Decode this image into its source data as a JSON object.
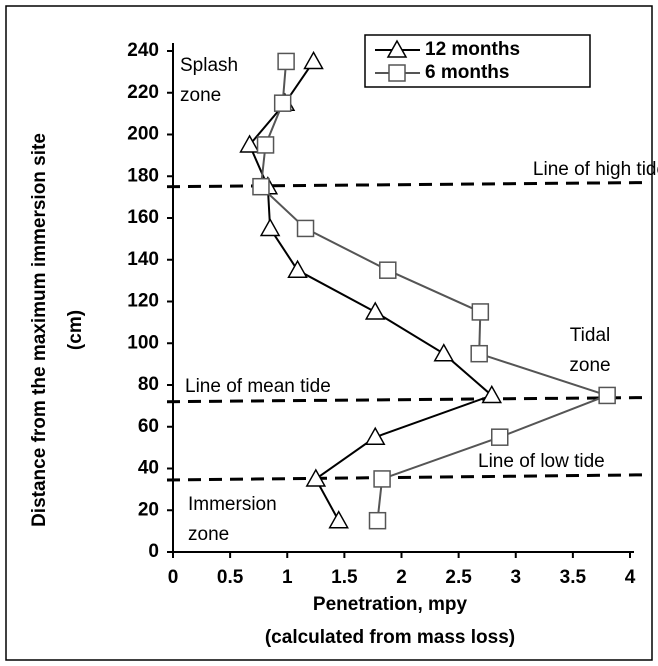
{
  "chart_data": {
    "type": "line",
    "xlabel": [
      "Penetration, mpy",
      "(calculated from mass loss)"
    ],
    "ylabel": [
      "Distance from the maximum immersion site",
      "(cm)"
    ],
    "xlim": [
      0,
      4
    ],
    "xticks": [
      0,
      0.5,
      1,
      1.5,
      2,
      2.5,
      3,
      3.5,
      4
    ],
    "ylim": [
      0,
      240
    ],
    "yticks": [
      0,
      20,
      40,
      60,
      80,
      100,
      120,
      140,
      160,
      180,
      200,
      220,
      240
    ],
    "legend": "upper right",
    "series": [
      {
        "name": "12 months",
        "color": "#000000",
        "marker": "triangle",
        "x": [
          1.23,
          0.98,
          0.67,
          0.83,
          0.85,
          1.09,
          1.77,
          2.37,
          2.79,
          1.77,
          1.25,
          1.45
        ],
        "values": [
          235,
          215,
          195,
          175,
          155,
          135,
          115,
          95,
          75,
          55,
          35,
          15
        ]
      },
      {
        "name": "6 months",
        "color": "#555555",
        "marker": "square",
        "x": [
          0.99,
          0.96,
          0.81,
          0.77,
          1.16,
          1.88,
          2.69,
          2.68,
          3.8,
          2.86,
          1.83,
          1.79
        ],
        "values": [
          235,
          215,
          195,
          175,
          155,
          135,
          115,
          95,
          75,
          55,
          35,
          15
        ]
      }
    ],
    "tide_lines": [
      {
        "label": "Line of high tide",
        "y": [
          175,
          177
        ]
      },
      {
        "label": "Line of mean tide",
        "y": [
          72,
          74
        ]
      },
      {
        "label": "Line of low tide",
        "y": [
          34.5,
          37
        ]
      }
    ],
    "zones": [
      {
        "lines": [
          "Splash",
          "zone"
        ]
      },
      {
        "lines": [
          "Tidal",
          "zone"
        ]
      },
      {
        "lines": [
          "Immersion",
          "zone"
        ]
      }
    ]
  }
}
